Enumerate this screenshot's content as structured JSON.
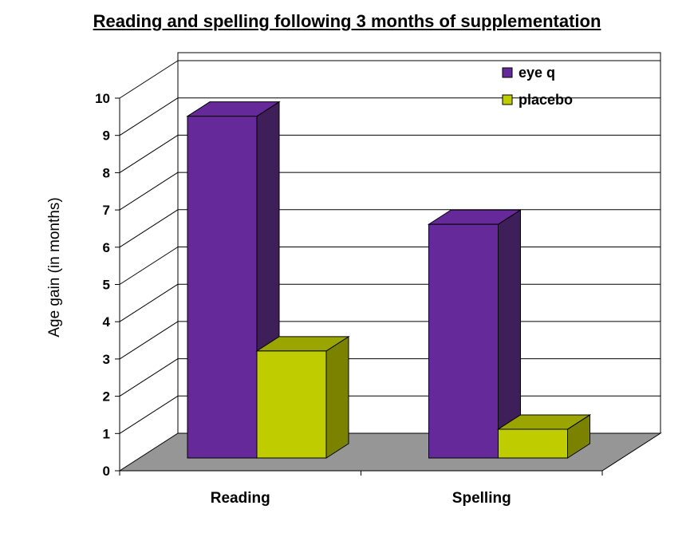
{
  "chart_data": {
    "type": "bar",
    "title": "Reading and spelling following 3 months of  supplementation",
    "ylabel": "Age gain (in months)",
    "xlabel": "",
    "categories": [
      "Reading",
      "Spelling"
    ],
    "series": [
      {
        "name": "eye q",
        "values": [
          9.6,
          6.7
        ],
        "color": "#66299a",
        "side_color": "#3f1f5a",
        "top_color": "#66299a"
      },
      {
        "name": "placebo",
        "values": [
          3.3,
          1.2
        ],
        "color": "#bfcc00",
        "side_color": "#7a8200",
        "top_color": "#9aa500"
      }
    ],
    "ylim": [
      0,
      10
    ],
    "yticks": [
      0,
      1,
      2,
      3,
      4,
      5,
      6,
      7,
      8,
      9,
      10
    ],
    "grid": true,
    "legend": "top-right",
    "three_d": true,
    "floor_color": "#969696"
  }
}
